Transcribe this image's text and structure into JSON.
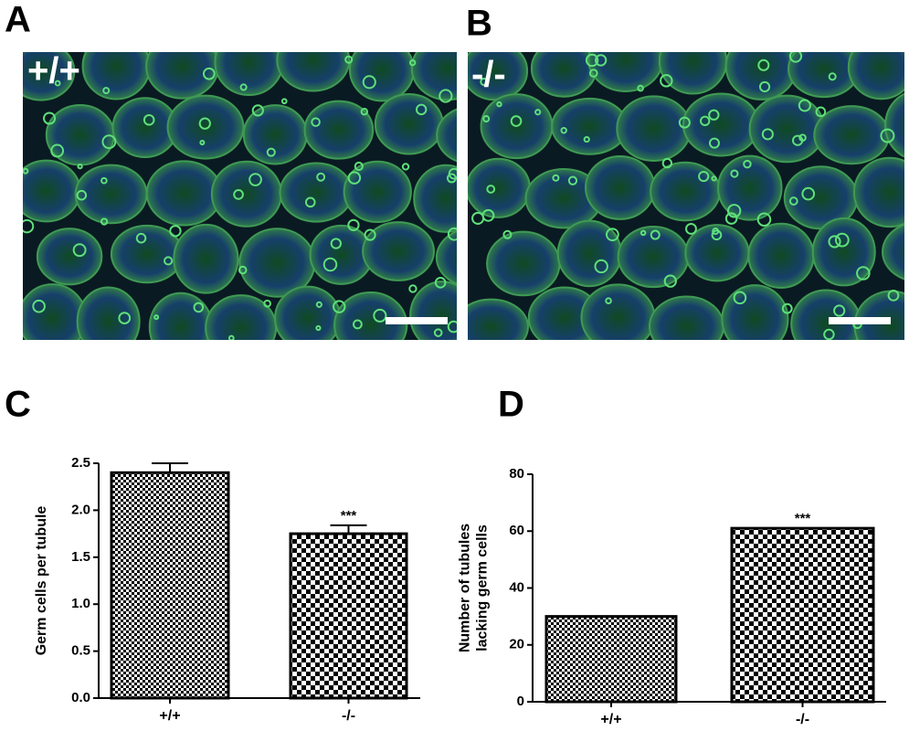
{
  "panels": [
    {
      "label": "A",
      "genotype": "+/+"
    },
    {
      "label": "B",
      "genotype": "-/-"
    },
    {
      "label": "C"
    },
    {
      "label": "D"
    }
  ],
  "chart_data": [
    {
      "type": "bar",
      "ylabel": [
        "Germ cells per tubule"
      ],
      "categories": [
        "+/+",
        "-/-"
      ],
      "values": [
        2.4,
        1.75
      ],
      "errors": [
        0.1,
        0.09
      ],
      "value_annotations": [
        null,
        "***"
      ],
      "color": "#000000",
      "ylim": [
        0,
        2.5
      ],
      "yticks": [
        {
          "value": 0,
          "label": "0.0"
        },
        0.5,
        {
          "value": 1,
          "label": "1.0"
        },
        1.5,
        {
          "value": 2,
          "label": "2.0"
        },
        2.5
      ]
    },
    {
      "type": "bar",
      "ylabel": [
        "Number of tubules",
        "lacking germ cells"
      ],
      "categories": [
        "+/+",
        "-/-"
      ],
      "values": [
        30,
        61
      ],
      "value_annotations": [
        null,
        "***"
      ],
      "color": "#000000",
      "ylim": [
        0,
        80
      ],
      "yticks": [
        0,
        20,
        40,
        60,
        80
      ]
    }
  ]
}
